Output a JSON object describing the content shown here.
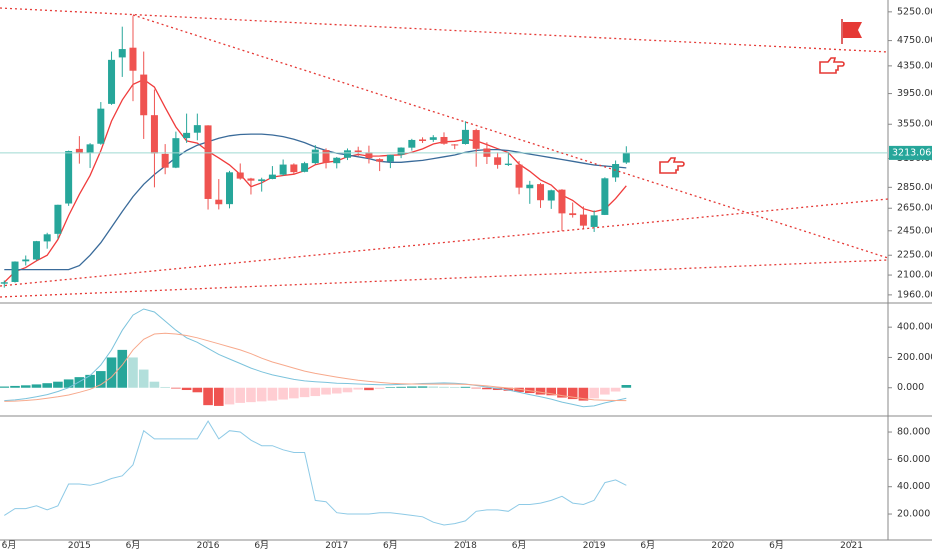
{
  "chart_data": [
    {
      "type": "candlestick",
      "x": [
        "2014-06",
        "2014-07",
        "2014-08",
        "2014-09",
        "2014-10",
        "2014-11",
        "2014-12",
        "2015-01",
        "2015-02",
        "2015-03",
        "2015-04",
        "2015-05",
        "2015-06",
        "2015-07",
        "2015-08",
        "2015-09",
        "2015-10",
        "2015-11",
        "2015-12",
        "2016-01",
        "2016-02",
        "2016-03",
        "2016-04",
        "2016-05",
        "2016-06",
        "2016-07",
        "2016-08",
        "2016-09",
        "2016-10",
        "2016-11",
        "2016-12",
        "2017-01",
        "2017-02",
        "2017-03",
        "2017-04",
        "2017-05",
        "2017-06",
        "2017-07",
        "2017-08",
        "2017-09",
        "2017-10",
        "2017-11",
        "2017-12",
        "2018-01",
        "2018-02",
        "2018-03",
        "2018-04",
        "2018-05",
        "2018-06",
        "2018-07",
        "2018-08",
        "2018-09",
        "2018-10",
        "2018-11",
        "2018-12",
        "2019-01",
        "2019-02",
        "2019-03",
        "2019-04"
      ],
      "open": [
        2038,
        2050,
        2203,
        2217,
        2361,
        2424,
        2694,
        3258,
        3212,
        3317,
        3811,
        4480,
        4634,
        4220,
        3664,
        3202,
        3052,
        3383,
        3447,
        3536,
        2730,
        2688,
        3001,
        2939,
        2913,
        2934,
        2979,
        3086,
        3008,
        3101,
        3245,
        3100,
        3159,
        3240,
        3219,
        3144,
        3118,
        3193,
        3272,
        3367,
        3362,
        3396,
        3309,
        3314,
        3479,
        3263,
        3164,
        3081,
        3084,
        2841,
        2882,
        2722,
        2827,
        2604,
        2592,
        2483,
        2589,
        2950,
        3107
      ],
      "high": [
        2061,
        2203,
        2248,
        2365,
        2433,
        2683,
        3239,
        3406,
        3324,
        3835,
        4572,
        4986,
        5178,
        4572,
        4006,
        3313,
        3460,
        3684,
        3684,
        3538,
        2933,
        3018,
        3097,
        2946,
        2947,
        3069,
        3140,
        3098,
        3115,
        3301,
        3264,
        3168,
        3263,
        3283,
        3295,
        3154,
        3193,
        3276,
        3374,
        3392,
        3418,
        3451,
        3313,
        3587,
        3495,
        3334,
        3220,
        3219,
        3124,
        2915,
        2895,
        2827,
        2832,
        2703,
        2667,
        2630,
        2951,
        3129,
        3288
      ],
      "low": [
        2010,
        2046,
        2171,
        2209,
        2302,
        2384,
        2672,
        3095,
        3049,
        3306,
        3798,
        4186,
        3847,
        3373,
        2850,
        2983,
        3047,
        3327,
        3357,
        2638,
        2639,
        2649,
        2927,
        2780,
        2808,
        2931,
        2966,
        2977,
        3003,
        3089,
        3044,
        3044,
        3134,
        3176,
        3097,
        3016,
        3047,
        3155,
        3239,
        3326,
        3339,
        3306,
        3255,
        3307,
        3062,
        3091,
        3041,
        3070,
        2782,
        2691,
        2653,
        2644,
        2449,
        2565,
        2462,
        2440,
        2588,
        2905,
        3092
      ],
      "close": [
        2048,
        2201,
        2217,
        2363,
        2420,
        2682,
        3234,
        3210,
        3310,
        3748,
        4442,
        4612,
        4277,
        3663,
        3206,
        3052,
        3382,
        3445,
        3539,
        2737,
        2687,
        3003,
        2938,
        2917,
        2930,
        2979,
        3085,
        3005,
        3100,
        3250,
        3104,
        3159,
        3242,
        3223,
        3155,
        3117,
        3192,
        3273,
        3361,
        3349,
        3393,
        3317,
        3307,
        3481,
        3259,
        3169,
        3082,
        3095,
        2847,
        2876,
        2725,
        2821,
        2603,
        2588,
        2494,
        2585,
        2941,
        3091,
        3213
      ],
      "up_color": "#26a69a",
      "down_color": "#ef5350",
      "lines": [
        {
          "color": "#f03c3c",
          "values": [
            2048,
            2125,
            2155,
            2207,
            2250,
            2377,
            2583,
            2782,
            2971,
            3237,
            3589,
            3864,
            4078,
            4148,
            4040,
            3762,
            3516,
            3350,
            3325,
            3231,
            3158,
            3082,
            2981,
            2856,
            2895,
            2953,
            2970,
            2983,
            3020,
            3084,
            3109,
            3124,
            3171,
            3196,
            3177,
            3179,
            3186,
            3192,
            3220,
            3258,
            3314,
            3339,
            3345,
            3369,
            3351,
            3307,
            3260,
            3217,
            3090,
            3014,
            2925,
            2873,
            2774,
            2723,
            2646,
            2618,
            2642,
            2740,
            2865
          ]
        },
        {
          "color": "#3a6b9a",
          "values": [
            2140,
            2140,
            2140,
            2140,
            2140,
            2140,
            2140,
            2170,
            2250,
            2350,
            2480,
            2620,
            2760,
            2880,
            2980,
            3070,
            3160,
            3240,
            3300,
            3340,
            3380,
            3410,
            3425,
            3430,
            3430,
            3420,
            3400,
            3370,
            3330,
            3280,
            3240,
            3210,
            3190,
            3170,
            3150,
            3120,
            3110,
            3110,
            3120,
            3130,
            3150,
            3170,
            3190,
            3220,
            3240,
            3250,
            3250,
            3240,
            3220,
            3200,
            3180,
            3160,
            3140,
            3120,
            3100,
            3080,
            3070,
            3060,
            3050
          ]
        }
      ],
      "last_price": {
        "value": 3213.06,
        "label": "3213.060"
      },
      "log_scale": true,
      "ylim": [
        1912,
        5471
      ],
      "yticks": [
        {
          "value": 1960,
          "label": "1960.000"
        },
        {
          "value": 2100,
          "label": "2100.000"
        },
        {
          "value": 2250,
          "label": "2250.000"
        },
        {
          "value": 2450,
          "label": "2450.000"
        },
        {
          "value": 2650,
          "label": "2650.000"
        },
        {
          "value": 2850,
          "label": "2850.000"
        },
        {
          "value": 3150,
          "label": "3150.000"
        },
        {
          "value": 3550,
          "label": "3550.000"
        },
        {
          "value": 3950,
          "label": "3950.000"
        },
        {
          "value": 4350,
          "label": "4350.000"
        },
        {
          "value": 4750,
          "label": "4750.000"
        },
        {
          "value": 5250,
          "label": "5250.000"
        }
      ]
    },
    {
      "type": "macd",
      "histogram": [
        8,
        12,
        16,
        22,
        30,
        40,
        55,
        70,
        85,
        110,
        200,
        250,
        200,
        120,
        40,
        5,
        -5,
        -15,
        -30,
        -115,
        -120,
        -110,
        -100,
        -95,
        -90,
        -85,
        -78,
        -70,
        -62,
        -55,
        -45,
        -38,
        -30,
        -12,
        -16,
        -8,
        4,
        6,
        8,
        9,
        8,
        6,
        5,
        6,
        -4,
        -10,
        -15,
        -20,
        -28,
        -35,
        -45,
        -50,
        -65,
        -75,
        -85,
        -70,
        -45,
        -25,
        18
      ],
      "histogram_colors": [
        "#26a69a",
        "#b2dfdb",
        "#ef5350",
        "#ffcdd2"
      ],
      "series": [
        {
          "color": "#7cc3dc",
          "values": [
            -85,
            -80,
            -72,
            -60,
            -45,
            -25,
            0,
            40,
            80,
            150,
            250,
            380,
            480,
            520,
            500,
            440,
            380,
            330,
            300,
            260,
            220,
            190,
            160,
            130,
            105,
            85,
            70,
            55,
            45,
            40,
            35,
            30,
            28,
            25,
            22,
            20,
            20,
            22,
            25,
            28,
            30,
            32,
            30,
            25,
            15,
            5,
            -5,
            -15,
            -30,
            -45,
            -60,
            -75,
            -95,
            -110,
            -125,
            -120,
            -100,
            -85,
            -70
          ]
        },
        {
          "color": "#f7a98c",
          "values": [
            -90,
            -88,
            -84,
            -78,
            -70,
            -60,
            -48,
            -30,
            -10,
            20,
            70,
            150,
            250,
            320,
            355,
            360,
            355,
            345,
            330,
            310,
            290,
            270,
            250,
            225,
            195,
            170,
            150,
            130,
            110,
            95,
            82,
            70,
            60,
            50,
            42,
            35,
            30,
            27,
            25,
            24,
            24,
            24,
            24,
            22,
            18,
            12,
            5,
            -2,
            -10,
            -20,
            -30,
            -40,
            -52,
            -62,
            -72,
            -80,
            -82,
            -84,
            -85
          ]
        }
      ],
      "ylim": [
        -180,
        553
      ],
      "yticks": [
        {
          "value": 0,
          "label": "0.000"
        },
        {
          "value": 200,
          "label": "200.000"
        },
        {
          "value": 400,
          "label": "400.000"
        }
      ]
    },
    {
      "type": "line",
      "series": [
        {
          "color": "#8ecae6",
          "values": [
            19,
            24,
            24,
            26,
            23,
            26,
            42,
            42,
            41,
            43,
            46,
            48,
            56,
            81,
            75,
            75,
            75,
            75,
            75,
            88,
            75,
            81,
            80,
            74,
            70,
            70,
            67,
            65,
            65,
            30,
            29,
            21,
            20,
            20,
            20,
            21,
            21,
            20,
            19,
            18,
            14,
            12,
            13,
            15,
            22,
            23,
            23,
            22,
            27,
            27,
            28,
            30,
            33,
            28,
            27,
            30,
            43,
            45,
            41
          ]
        }
      ],
      "ylim": [
        1,
        91
      ],
      "yticks": [
        {
          "value": 20,
          "label": "20.000"
        },
        {
          "value": 40,
          "label": "40.000"
        },
        {
          "value": 60,
          "label": "60.000"
        },
        {
          "value": 80,
          "label": "80.000"
        }
      ],
      "xlim": [
        "2014-06",
        "2021-04"
      ],
      "xticks": [
        {
          "value": "2014-06",
          "label": "6月"
        },
        {
          "value": "2015-01",
          "label": "2015"
        },
        {
          "value": "2015-06",
          "label": "6月"
        },
        {
          "value": "2016-01",
          "label": "2016"
        },
        {
          "value": "2016-06",
          "label": "6月"
        },
        {
          "value": "2017-01",
          "label": "2017"
        },
        {
          "value": "2017-06",
          "label": "6月"
        },
        {
          "value": "2018-01",
          "label": "2018"
        },
        {
          "value": "2018-06",
          "label": "6月"
        },
        {
          "value": "2019-01",
          "label": "2019"
        },
        {
          "value": "2019-06",
          "label": "6月"
        },
        {
          "value": "2020-01",
          "label": "2020"
        },
        {
          "value": "2020-06",
          "label": "6月"
        },
        {
          "value": "2021-01",
          "label": "2021"
        }
      ]
    }
  ]
}
